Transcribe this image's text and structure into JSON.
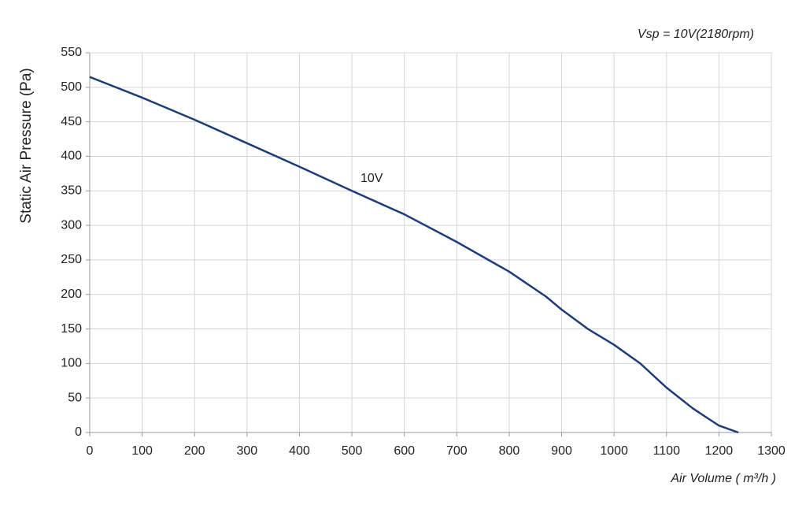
{
  "chart_data": {
    "type": "line",
    "title": "Vsp = 10V(2180rpm)",
    "x_label": "Air Volume ( m³/h )",
    "y_label": "Static Air Pressure  (Pa)",
    "x": [
      0,
      100,
      200,
      300,
      400,
      500,
      600,
      700,
      800,
      870,
      900,
      950,
      1000,
      1050,
      1100,
      1150,
      1200,
      1237
    ],
    "series": [
      {
        "name": "10V",
        "color": "#1c3d7a",
        "values": [
          515,
          485,
          453,
          419,
          385,
          350,
          316,
          276,
          233,
          197,
          178,
          150,
          127,
          100,
          65,
          35,
          10,
          0
        ]
      }
    ],
    "xlim": [
      0,
      1300
    ],
    "xticks": [
      0,
      100,
      200,
      300,
      400,
      500,
      600,
      700,
      800,
      900,
      1000,
      1100,
      1200,
      1300
    ],
    "ylim": [
      0,
      550
    ],
    "yticks": [
      0,
      50,
      100,
      150,
      200,
      250,
      300,
      350,
      400,
      450,
      500,
      550
    ],
    "grid": true
  }
}
